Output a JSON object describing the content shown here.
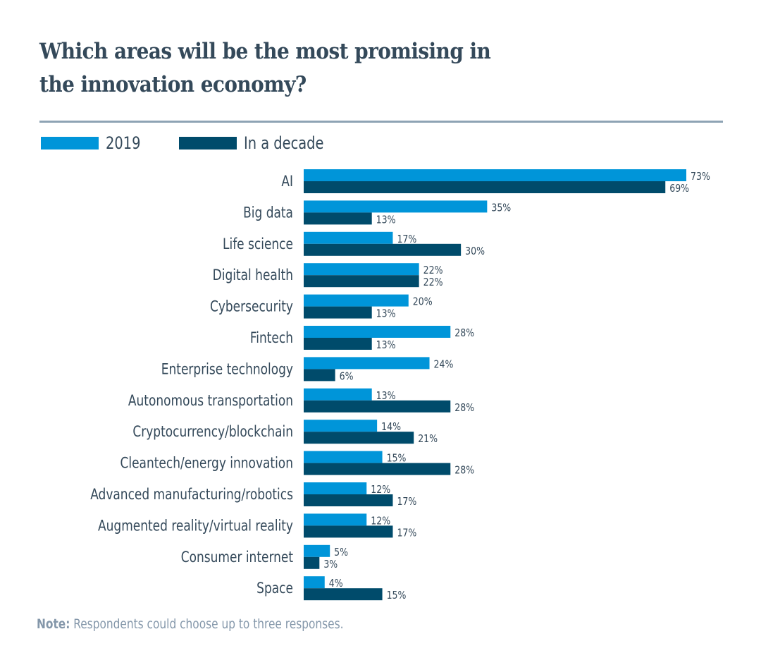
{
  "chart_data": {
    "type": "bar",
    "orientation": "horizontal",
    "title": "Which areas will be the most promising in the innovation economy?",
    "xlabel": "",
    "ylabel": "",
    "xlim": [
      0,
      73
    ],
    "grid": false,
    "legend_position": "top-left",
    "value_suffix": "%",
    "categories": [
      "AI",
      "Big data",
      "Life science",
      "Digital health",
      "Cybersecurity",
      "Fintech",
      "Enterprise technology",
      "Autonomous transportation",
      "Cryptocurrency/blockchain",
      "Cleantech/energy innovation",
      "Advanced manufacturing/robotics",
      "Augmented reality/virtual reality",
      "Consumer internet",
      "Space"
    ],
    "series": [
      {
        "name": "2019",
        "color": "#0095d9",
        "values": [
          73,
          35,
          17,
          22,
          20,
          28,
          24,
          13,
          14,
          15,
          12,
          12,
          5,
          4
        ]
      },
      {
        "name": "In a decade",
        "color": "#004b6b",
        "values": [
          69,
          13,
          30,
          22,
          13,
          13,
          6,
          28,
          21,
          28,
          17,
          17,
          3,
          15
        ]
      }
    ],
    "note_label": "Note:",
    "note_text": "Respondents could choose up to three responses."
  },
  "title_line1": "Which areas will be the most promising in",
  "title_line2": "the innovation economy?"
}
